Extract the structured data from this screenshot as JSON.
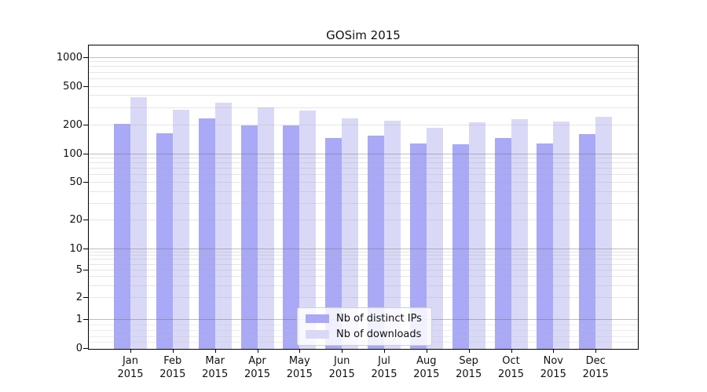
{
  "title": "GOSim 2015",
  "colors": {
    "bar_distinct_ips": "#a9a9f7",
    "bar_downloads": "#d9d9f7",
    "grid_major": "#bdbdbd",
    "grid_minor": "#e4e4e4",
    "axis": "#000000"
  },
  "y_axis": {
    "ticks": [
      0,
      1,
      2,
      5,
      10,
      20,
      50,
      100,
      200,
      500,
      1000
    ]
  },
  "x_axis": {
    "months": [
      "Jan",
      "Feb",
      "Mar",
      "Apr",
      "May",
      "Jun",
      "Jul",
      "Aug",
      "Sep",
      "Oct",
      "Nov",
      "Dec"
    ],
    "year": "2015"
  },
  "legend": {
    "items": [
      {
        "label": "Nb of distinct IPs",
        "series": "ips"
      },
      {
        "label": "Nb of downloads",
        "series": "dl"
      }
    ]
  },
  "chart_data": {
    "type": "bar",
    "title": "GOSim 2015",
    "categories": [
      "Jan 2015",
      "Feb 2015",
      "Mar 2015",
      "Apr 2015",
      "May 2015",
      "Jun 2015",
      "Jul 2015",
      "Aug 2015",
      "Sep 2015",
      "Oct 2015",
      "Nov 2015",
      "Dec 2015"
    ],
    "series": [
      {
        "name": "Nb of distinct IPs",
        "color": "#a9a9f7",
        "values": [
          205,
          163,
          232,
          198,
          195,
          146,
          155,
          128,
          125,
          145,
          128,
          161
        ]
      },
      {
        "name": "Nb of downloads",
        "color": "#d9d9f7",
        "values": [
          385,
          285,
          340,
          300,
          282,
          233,
          220,
          186,
          211,
          229,
          215,
          240
        ]
      }
    ],
    "yscale": "symlog",
    "ylim": [
      0,
      1000
    ],
    "y_ticks": [
      0,
      1,
      2,
      5,
      10,
      20,
      50,
      100,
      200,
      500,
      1000
    ],
    "grid": true,
    "legend_position": "inside-bottom-center"
  }
}
